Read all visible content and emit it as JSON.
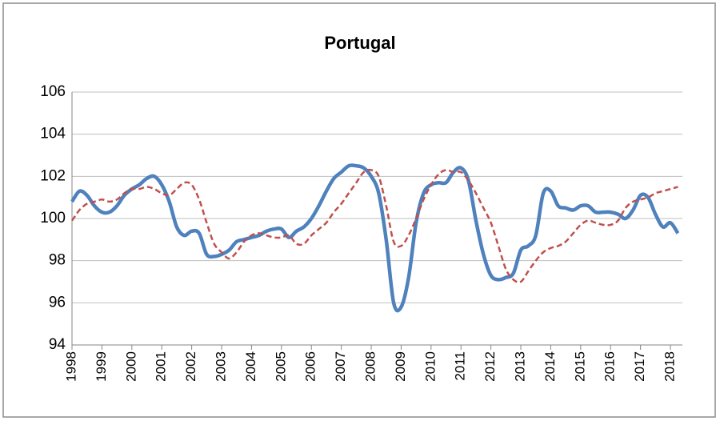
{
  "chart_data": {
    "type": "line",
    "title": "Portugal",
    "categories": [
      "1998",
      null,
      null,
      null,
      "1999",
      null,
      null,
      null,
      "2000",
      null,
      null,
      null,
      "2001",
      null,
      null,
      null,
      "2002",
      null,
      null,
      null,
      "2003",
      null,
      null,
      null,
      "2004",
      null,
      null,
      null,
      "2005",
      null,
      null,
      null,
      "2006",
      null,
      null,
      null,
      "2007",
      null,
      null,
      null,
      "2008",
      null,
      null,
      null,
      "2009",
      null,
      null,
      null,
      "2010",
      null,
      null,
      null,
      "2011",
      null,
      null,
      null,
      "2012",
      null,
      null,
      null,
      "2013",
      null,
      null,
      null,
      "2014",
      null,
      null,
      null,
      "2015",
      null,
      null,
      null,
      "2016",
      null,
      null,
      null,
      "2017",
      null,
      null,
      null,
      "2018",
      null
    ],
    "series": [
      {
        "color": "#4f81bd",
        "style": "solid",
        "values": [
          100.8,
          101.3,
          101.1,
          100.6,
          100.3,
          100.3,
          100.6,
          101.1,
          101.4,
          101.6,
          101.9,
          102.0,
          101.6,
          100.8,
          99.6,
          99.2,
          99.4,
          99.3,
          98.3,
          98.2,
          98.3,
          98.5,
          98.9,
          99.0,
          99.1,
          99.2,
          99.4,
          99.5,
          99.5,
          99.1,
          99.4,
          99.6,
          100.0,
          100.6,
          101.3,
          101.9,
          102.2,
          102.5,
          102.5,
          102.4,
          102.0,
          101.2,
          99.0,
          96.0,
          95.8,
          97.2,
          99.8,
          101.2,
          101.6,
          101.7,
          101.7,
          102.2,
          102.4,
          101.8,
          99.9,
          98.3,
          97.3,
          97.1,
          97.2,
          97.4,
          98.5,
          98.7,
          99.2,
          101.2,
          101.3,
          100.6,
          100.5,
          100.4,
          100.6,
          100.6,
          100.3,
          100.3,
          100.3,
          100.2,
          100.0,
          100.4,
          101.1,
          101.0,
          100.2,
          99.6,
          99.8,
          99.3
        ]
      },
      {
        "color": "#c0504d",
        "style": "dashed",
        "values": [
          99.9,
          100.4,
          100.7,
          100.8,
          100.9,
          100.8,
          100.9,
          101.2,
          101.4,
          101.4,
          101.5,
          101.4,
          101.2,
          101.1,
          101.4,
          101.7,
          101.6,
          100.9,
          99.8,
          98.8,
          98.4,
          98.1,
          98.4,
          98.9,
          99.2,
          99.3,
          99.2,
          99.1,
          99.1,
          99.2,
          98.8,
          98.8,
          99.2,
          99.5,
          99.8,
          100.3,
          100.7,
          101.2,
          101.7,
          102.2,
          102.3,
          102.0,
          100.6,
          98.9,
          98.7,
          99.2,
          100.0,
          100.9,
          101.6,
          102.1,
          102.3,
          102.2,
          102.2,
          101.8,
          101.2,
          100.5,
          99.8,
          98.7,
          97.6,
          97.1,
          97.0,
          97.5,
          98.0,
          98.4,
          98.6,
          98.7,
          98.9,
          99.3,
          99.7,
          99.9,
          99.8,
          99.7,
          99.7,
          99.9,
          100.5,
          100.8,
          100.9,
          101.0,
          101.2,
          101.3,
          101.4,
          101.5
        ]
      }
    ],
    "ylim": [
      94,
      106
    ],
    "yticks": [
      94,
      96,
      98,
      100,
      102,
      104,
      106
    ],
    "grid": true
  }
}
